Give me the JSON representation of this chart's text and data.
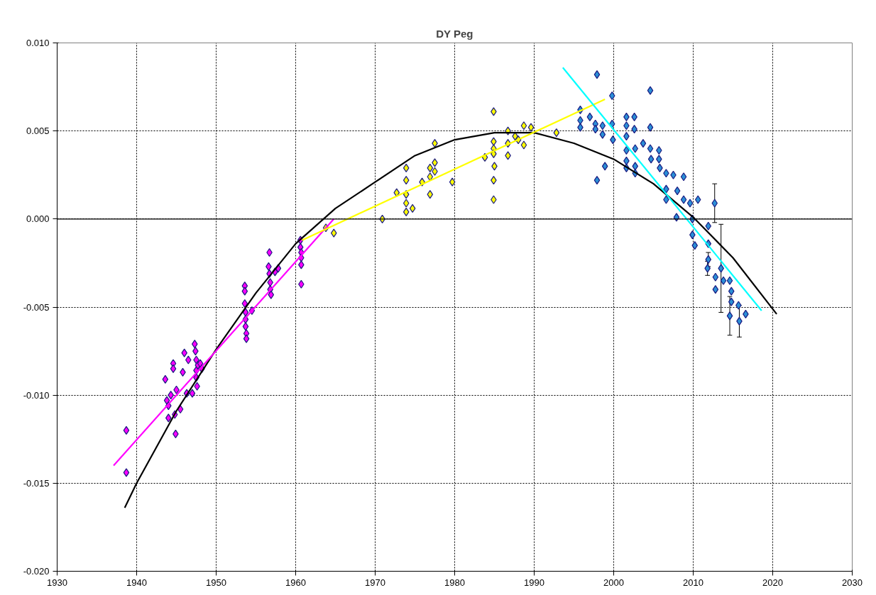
{
  "chart_data": {
    "type": "scatter",
    "title": "DY Peg",
    "marker": "diamond",
    "grid": true,
    "xlim": [
      1930,
      2030
    ],
    "xticks": [
      1930,
      1940,
      1950,
      1960,
      1970,
      1980,
      1990,
      2000,
      2010,
      2020,
      2030
    ],
    "ylim": [
      -0.02,
      0.01
    ],
    "yticks": [
      {
        "value": -0.02,
        "label": "-0.020"
      },
      {
        "value": -0.015,
        "label": "-0.015"
      },
      {
        "value": -0.01,
        "label": "-0.010"
      },
      {
        "value": -0.005,
        "label": "-0.005"
      },
      {
        "value": 0,
        "label": "0.000"
      },
      {
        "value": 0.005,
        "label": "0.005"
      },
      {
        "value": 0.01,
        "label": "0.010"
      }
    ],
    "ref_lines": [
      {
        "axis": "y",
        "value": 0,
        "color": "#000000",
        "line_style": "solid"
      }
    ],
    "series": [
      {
        "color": "#ff00ff",
        "x": [
          1938.7,
          1938.7,
          1943.6,
          1943.8,
          1944.0,
          1944.0,
          1944.3,
          1944.6,
          1944.6,
          1944.8,
          1944.9,
          1945.0,
          1945.5,
          1945.8,
          1946.0,
          1946.3,
          1946.5,
          1947.0,
          1947.3,
          1947.4,
          1947.5,
          1947.5,
          1947.5,
          1947.6,
          1947.7,
          1948.0,
          1948.2,
          1953.6,
          1953.6,
          1953.6,
          1953.7,
          1953.7,
          1953.7,
          1953.8,
          1953.8,
          1954.5,
          1956.7,
          1956.6,
          1956.7,
          1956.8,
          1956.8,
          1956.9,
          1957.4,
          1957.8,
          1960.6,
          1960.6,
          1960.7,
          1960.7,
          1960.7,
          1960.7
        ],
        "values": [
          -0.012,
          -0.0144,
          -0.0091,
          -0.0103,
          -0.0106,
          -0.0113,
          -0.01,
          -0.0082,
          -0.0085,
          -0.0111,
          -0.0122,
          -0.0097,
          -0.0108,
          -0.0087,
          -0.0076,
          -0.0099,
          -0.008,
          -0.0099,
          -0.0071,
          -0.0075,
          -0.008,
          -0.0086,
          -0.009,
          -0.0095,
          -0.0083,
          -0.0082,
          -0.0085,
          -0.0038,
          -0.0041,
          -0.0048,
          -0.0053,
          -0.0057,
          -0.0061,
          -0.0065,
          -0.0068,
          -0.0052,
          -0.0019,
          -0.0027,
          -0.0031,
          -0.0036,
          -0.004,
          -0.0043,
          -0.003,
          -0.0028,
          -0.0012,
          -0.0016,
          -0.0019,
          -0.0022,
          -0.0026,
          -0.0037
        ]
      },
      {
        "color": "#ffff00",
        "x": [
          1963.8,
          1964.8,
          1970.9,
          1973.9,
          1973.9,
          1972.7,
          1973.9,
          1973.9,
          1973.9,
          1974.7,
          1975.9,
          1976.9,
          1976.9,
          1976.9,
          1977.5,
          1977.5,
          1977.5,
          1979.7,
          1983.8,
          1984.9,
          1984.9,
          1984.9,
          1984.9,
          1985.0,
          1984.9,
          1984.9,
          1986.7,
          1986.7,
          1986.7,
          1987.6,
          1988.0,
          1988.7,
          1988.7,
          1989.6,
          1992.8
        ],
        "values": [
          -0.0005,
          -0.0008,
          0.0,
          0.0029,
          0.0022,
          0.0015,
          0.0014,
          0.0009,
          0.0004,
          0.0006,
          0.0021,
          0.0029,
          0.0024,
          0.0014,
          0.0043,
          0.0032,
          0.0027,
          0.0021,
          0.0035,
          0.0061,
          0.0044,
          0.004,
          0.0037,
          0.003,
          0.0022,
          0.0011,
          0.005,
          0.0043,
          0.0036,
          0.0047,
          0.0045,
          0.0053,
          0.0042,
          0.0052,
          0.0049
        ]
      },
      {
        "color": "#2b8fd6",
        "x": [
          1995.8,
          1995.8,
          1995.8,
          1997.0,
          1997.7,
          1997.7,
          1997.9,
          1997.9,
          1998.6,
          1998.6,
          1998.9,
          1999.8,
          1999.8,
          1999.9,
          2001.6,
          2001.6,
          2001.6,
          2001.6,
          2001.6,
          2001.6,
          2002.6,
          2002.6,
          2002.7,
          2002.7,
          2002.7,
          2003.7,
          2004.6,
          2004.6,
          2004.6,
          2004.7,
          2005.7,
          2005.7,
          2005.8,
          2006.6,
          2006.6,
          2006.6,
          2007.5,
          2007.9,
          2008.0,
          2008.8,
          2008.8,
          2009.6,
          2009.9,
          2009.9,
          2010.2,
          2010.6,
          2011.8,
          2011.9,
          2011.9,
          2011.9,
          2012.7,
          2012.8,
          2012.8,
          2013.5,
          2013.8,
          2014.6,
          2014.8,
          2014.8,
          2014.6,
          2015.7,
          2015.8,
          2016.6
        ],
        "values": [
          0.0062,
          0.0056,
          0.0052,
          0.0058,
          0.0054,
          0.0051,
          0.0082,
          0.0022,
          0.0053,
          0.0048,
          0.003,
          0.007,
          0.0054,
          0.0045,
          0.0058,
          0.0053,
          0.0047,
          0.0039,
          0.0033,
          0.0029,
          0.0058,
          0.0051,
          0.004,
          0.003,
          0.0026,
          0.0043,
          0.0073,
          0.0052,
          0.004,
          0.0034,
          0.0039,
          0.0034,
          0.0029,
          0.0026,
          0.0017,
          0.0011,
          0.0025,
          0.0001,
          0.0016,
          0.0024,
          0.0011,
          0.0009,
          0.0,
          -0.0009,
          -0.0015,
          0.0011,
          -0.0028,
          -0.0004,
          -0.0014,
          -0.0023,
          0.0009,
          -0.0033,
          -0.004,
          -0.0028,
          -0.0035,
          -0.0035,
          -0.0041,
          -0.0047,
          -0.0055,
          -0.0049,
          -0.0058,
          -0.0054
        ],
        "errors": [
          null,
          null,
          null,
          null,
          null,
          null,
          null,
          null,
          null,
          null,
          null,
          null,
          null,
          null,
          null,
          null,
          null,
          null,
          null,
          null,
          null,
          null,
          null,
          null,
          null,
          null,
          null,
          null,
          null,
          null,
          null,
          null,
          null,
          null,
          null,
          null,
          null,
          null,
          null,
          null,
          null,
          null,
          null,
          null,
          null,
          null,
          0.0004,
          null,
          null,
          0.0004,
          0.0011,
          null,
          null,
          0.0025,
          null,
          null,
          null,
          null,
          0.0011,
          null,
          0.0009,
          null
        ]
      },
      {
        "type": "line",
        "marker": "none",
        "color": "#000000",
        "x": [
          1938.5,
          1940,
          1945,
          1950,
          1955,
          1960,
          1965,
          1970,
          1975,
          1980,
          1985,
          1990,
          1995,
          2000,
          2005,
          2010,
          2015,
          2020.5
        ],
        "values": [
          -0.0164,
          -0.015,
          -0.0109,
          -0.0074,
          -0.0042,
          -0.0014,
          0.0006,
          0.0021,
          0.0036,
          0.0045,
          0.0049,
          0.0049,
          0.0043,
          0.0034,
          0.002,
          0.0001,
          -0.0022,
          -0.0054
        ]
      },
      {
        "type": "line",
        "marker": "none",
        "color": "#ff00ff",
        "x": [
          1937.1,
          1964.8
        ],
        "values": [
          -0.014,
          0.0
        ]
      },
      {
        "type": "line",
        "marker": "none",
        "color": "#ffff00",
        "x": [
          1960.8,
          1998.9
        ],
        "values": [
          -0.0012,
          0.0068
        ]
      },
      {
        "type": "line",
        "marker": "none",
        "color": "#00ffff",
        "x": [
          1993.6,
          2018.6
        ],
        "values": [
          0.0086,
          -0.0052
        ]
      }
    ]
  }
}
